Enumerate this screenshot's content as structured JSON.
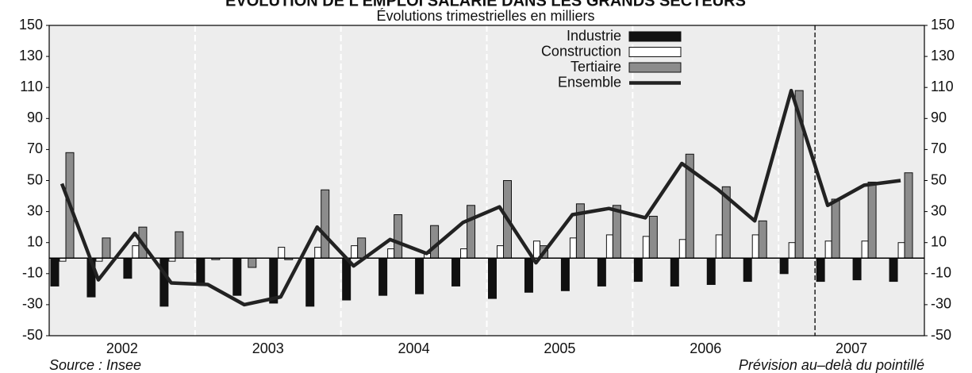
{
  "chart_data": {
    "type": "bar",
    "title": "ÉVOLUTION DE L'EMPLOI SALARIÉ DANS LES GRANDS SECTEURS",
    "subtitle": "Évolutions trimestrielles en milliers",
    "categories": [
      null,
      null,
      null,
      null,
      null,
      null,
      null,
      null,
      null,
      null,
      null,
      null,
      null,
      null,
      null,
      null,
      null,
      null,
      null,
      null,
      null,
      null,
      null,
      null
    ],
    "year_labels": [
      "2002",
      "2003",
      "2004",
      "2005",
      "2006",
      "2007"
    ],
    "series": [
      {
        "name": "Industrie",
        "type": "bar",
        "color": "#111111",
        "values": [
          -18,
          -25,
          -13,
          -31,
          -17,
          -24,
          -29,
          -31,
          -27,
          -24,
          -23,
          -18,
          -26,
          -22,
          -21,
          -18,
          -15,
          -18,
          -17,
          -15,
          -10,
          -15,
          -14,
          -15
        ]
      },
      {
        "name": "Construction",
        "type": "bar",
        "color": "#ffffff",
        "values": [
          -2,
          -2,
          8,
          -2,
          0,
          0,
          7,
          7,
          8,
          6,
          3,
          6,
          8,
          11,
          13,
          15,
          14,
          12,
          15,
          15,
          10,
          11,
          11,
          10
        ]
      },
      {
        "name": "Tertiaire",
        "type": "bar",
        "color": "#8c8c8c",
        "values": [
          68,
          13,
          20,
          17,
          -1,
          -6,
          -1,
          44,
          13,
          28,
          21,
          34,
          50,
          8,
          35,
          34,
          27,
          67,
          46,
          24,
          108,
          38,
          49,
          55
        ]
      },
      {
        "name": "Ensemble",
        "type": "line",
        "color": "#222222",
        "values": [
          48,
          -14,
          16,
          -16,
          -17,
          -30,
          -25,
          20,
          -5,
          12,
          3,
          23,
          33,
          -3,
          28,
          32,
          26,
          61,
          44,
          24,
          108,
          34,
          47,
          50
        ]
      }
    ],
    "ylim": [
      -50,
      150
    ],
    "yticks": [
      -50,
      -30,
      -10,
      10,
      30,
      50,
      70,
      90,
      110,
      130,
      150
    ],
    "grid": true,
    "source": "Source : Insee",
    "note": "Prévision au–delà du pointillé"
  }
}
